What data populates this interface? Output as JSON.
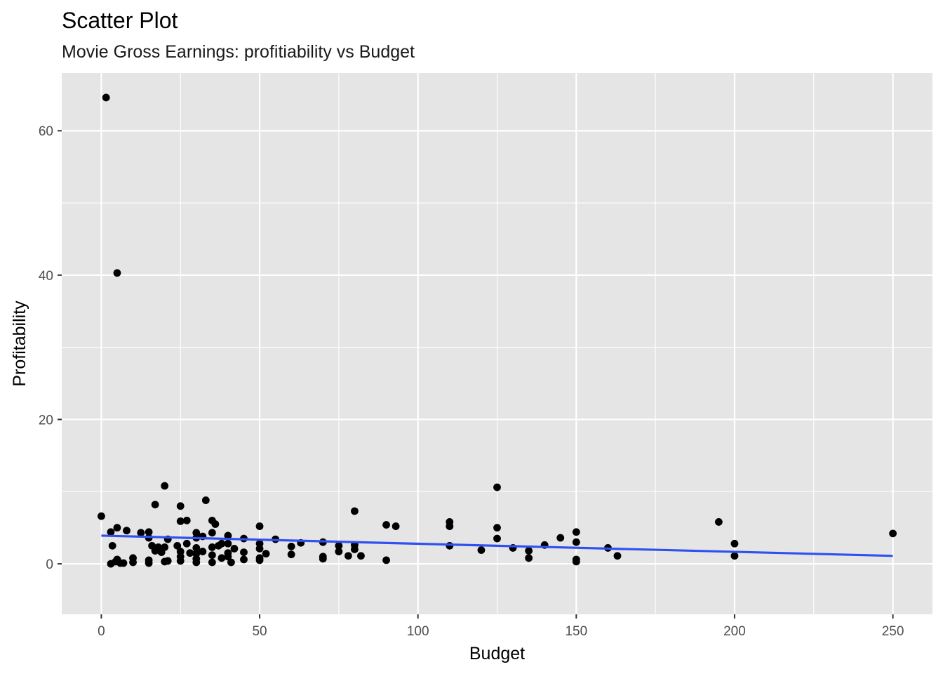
{
  "chart_data": {
    "type": "scatter",
    "title": "Scatter Plot",
    "subtitle": "Movie Gross Earnings: profitiability vs Budget",
    "xlabel": "Budget",
    "ylabel": "Profitability",
    "xlim": [
      -12.5,
      262.5
    ],
    "ylim": [
      -7,
      68
    ],
    "x_ticks": [
      0,
      50,
      100,
      150,
      200,
      250
    ],
    "y_ticks": [
      0,
      20,
      40,
      60
    ],
    "grid": true,
    "legend": "none",
    "colors": {
      "panel": "#e5e5e5",
      "grid": "#ffffff",
      "points": "#000000",
      "trend": "#3050f0"
    },
    "trend_line": {
      "x": [
        0,
        250
      ],
      "y": [
        3.9,
        1.1
      ]
    },
    "points": [
      {
        "x": 1.5,
        "y": 64.6
      },
      {
        "x": 5,
        "y": 40.3
      },
      {
        "x": 0,
        "y": 6.6
      },
      {
        "x": 3,
        "y": 4.4
      },
      {
        "x": 3.5,
        "y": 2.5
      },
      {
        "x": 3,
        "y": 0
      },
      {
        "x": 4.5,
        "y": 0.3
      },
      {
        "x": 5,
        "y": 0.6
      },
      {
        "x": 5,
        "y": 5
      },
      {
        "x": 6,
        "y": 0.1
      },
      {
        "x": 7,
        "y": 0.1
      },
      {
        "x": 8,
        "y": 4.6
      },
      {
        "x": 10,
        "y": 0.8
      },
      {
        "x": 10,
        "y": 0.2
      },
      {
        "x": 12.5,
        "y": 4.3
      },
      {
        "x": 15,
        "y": 4.4
      },
      {
        "x": 15,
        "y": 3.6
      },
      {
        "x": 15,
        "y": 0.5
      },
      {
        "x": 15,
        "y": 0.1
      },
      {
        "x": 16,
        "y": 2.5
      },
      {
        "x": 17,
        "y": 8.2
      },
      {
        "x": 17,
        "y": 1.8
      },
      {
        "x": 18,
        "y": 2.3
      },
      {
        "x": 19,
        "y": 1.6
      },
      {
        "x": 20,
        "y": 10.8
      },
      {
        "x": 20,
        "y": 2.3
      },
      {
        "x": 20,
        "y": 0.3
      },
      {
        "x": 21,
        "y": 3.4
      },
      {
        "x": 21,
        "y": 0.4
      },
      {
        "x": 24,
        "y": 2.5
      },
      {
        "x": 25,
        "y": 8
      },
      {
        "x": 25,
        "y": 5.9
      },
      {
        "x": 25,
        "y": 1.7
      },
      {
        "x": 25,
        "y": 1
      },
      {
        "x": 25,
        "y": 0.4
      },
      {
        "x": 27,
        "y": 6
      },
      {
        "x": 27,
        "y": 2.8
      },
      {
        "x": 28,
        "y": 1.5
      },
      {
        "x": 30,
        "y": 4.3
      },
      {
        "x": 30,
        "y": 3.6
      },
      {
        "x": 30,
        "y": 2.2
      },
      {
        "x": 30,
        "y": 1.4
      },
      {
        "x": 30,
        "y": 0.7
      },
      {
        "x": 30,
        "y": 0.2
      },
      {
        "x": 32,
        "y": 3.8
      },
      {
        "x": 32,
        "y": 1.7
      },
      {
        "x": 33,
        "y": 8.8
      },
      {
        "x": 35,
        "y": 6
      },
      {
        "x": 35,
        "y": 4.3
      },
      {
        "x": 35,
        "y": 2.3
      },
      {
        "x": 35,
        "y": 1.2
      },
      {
        "x": 35,
        "y": 0.2
      },
      {
        "x": 36,
        "y": 5.5
      },
      {
        "x": 37,
        "y": 2.5
      },
      {
        "x": 38,
        "y": 2.8
      },
      {
        "x": 38,
        "y": 0.8
      },
      {
        "x": 40,
        "y": 3.9
      },
      {
        "x": 40,
        "y": 2.8
      },
      {
        "x": 40,
        "y": 1.5
      },
      {
        "x": 40,
        "y": 1
      },
      {
        "x": 41,
        "y": 0.2
      },
      {
        "x": 42,
        "y": 2.1
      },
      {
        "x": 45,
        "y": 3.5
      },
      {
        "x": 45,
        "y": 1.6
      },
      {
        "x": 45,
        "y": 0.6
      },
      {
        "x": 50,
        "y": 5.2
      },
      {
        "x": 50,
        "y": 2.8
      },
      {
        "x": 50,
        "y": 2.1
      },
      {
        "x": 50,
        "y": 0.8
      },
      {
        "x": 50,
        "y": 0.5
      },
      {
        "x": 52,
        "y": 1.4
      },
      {
        "x": 55,
        "y": 3.4
      },
      {
        "x": 60,
        "y": 2.4
      },
      {
        "x": 60,
        "y": 1.3
      },
      {
        "x": 63,
        "y": 2.9
      },
      {
        "x": 70,
        "y": 3
      },
      {
        "x": 70,
        "y": 1
      },
      {
        "x": 70,
        "y": 0.7
      },
      {
        "x": 75,
        "y": 2.5
      },
      {
        "x": 75,
        "y": 1.7
      },
      {
        "x": 78,
        "y": 1.1
      },
      {
        "x": 80,
        "y": 7.3
      },
      {
        "x": 80,
        "y": 2.6
      },
      {
        "x": 80,
        "y": 2
      },
      {
        "x": 82,
        "y": 1.1
      },
      {
        "x": 90,
        "y": 5.4
      },
      {
        "x": 90,
        "y": 0.5
      },
      {
        "x": 93,
        "y": 5.2
      },
      {
        "x": 110,
        "y": 5.8
      },
      {
        "x": 110,
        "y": 5.2
      },
      {
        "x": 110,
        "y": 2.5
      },
      {
        "x": 120,
        "y": 1.9
      },
      {
        "x": 125,
        "y": 10.6
      },
      {
        "x": 125,
        "y": 5
      },
      {
        "x": 125,
        "y": 3.5
      },
      {
        "x": 130,
        "y": 2.2
      },
      {
        "x": 135,
        "y": 1.8
      },
      {
        "x": 135,
        "y": 0.8
      },
      {
        "x": 140,
        "y": 2.6
      },
      {
        "x": 145,
        "y": 3.6
      },
      {
        "x": 150,
        "y": 4.4
      },
      {
        "x": 150,
        "y": 3
      },
      {
        "x": 150,
        "y": 0.6
      },
      {
        "x": 150,
        "y": 0.3
      },
      {
        "x": 160,
        "y": 2.2
      },
      {
        "x": 163,
        "y": 1.1
      },
      {
        "x": 195,
        "y": 5.8
      },
      {
        "x": 200,
        "y": 2.8
      },
      {
        "x": 200,
        "y": 1.1
      },
      {
        "x": 250,
        "y": 4.2
      }
    ]
  }
}
